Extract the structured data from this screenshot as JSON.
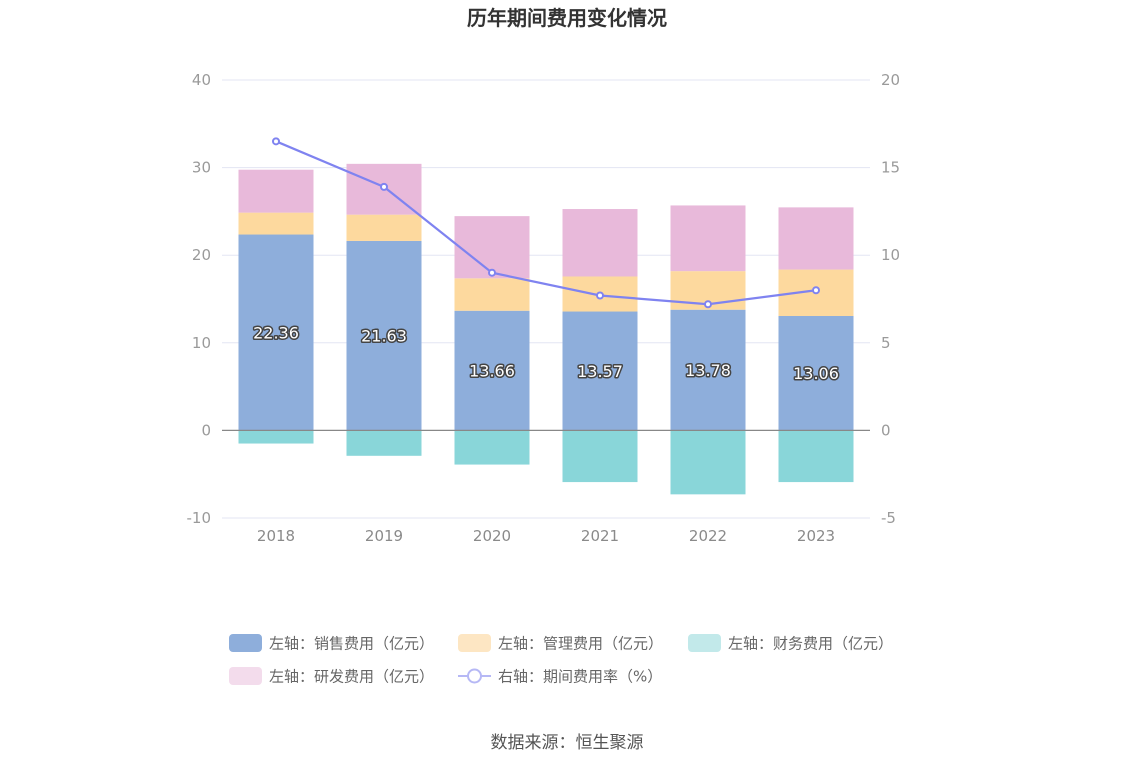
{
  "chart_data": {
    "type": "bar",
    "title": "历年期间费用变化情况",
    "categories": [
      "2018",
      "2019",
      "2020",
      "2021",
      "2022",
      "2023"
    ],
    "left_axis": {
      "ylim": [
        -10,
        40
      ],
      "ticks": [
        "-10",
        "0",
        "10",
        "20",
        "30",
        "40"
      ]
    },
    "right_axis": {
      "ylim": [
        -5,
        20
      ],
      "ticks": [
        "-5",
        "0",
        "5",
        "10",
        "15",
        "20"
      ]
    },
    "series": [
      {
        "name": "左轴：销售费用（亿元）",
        "axis": "left",
        "type": "bar",
        "stack": "total",
        "color": "#8eaedb",
        "values": [
          22.36,
          21.63,
          13.66,
          13.57,
          13.78,
          13.06
        ],
        "labels": [
          "22.36",
          "21.63",
          "13.66",
          "13.57",
          "13.78",
          "13.06"
        ]
      },
      {
        "name": "左轴：管理费用（亿元）",
        "axis": "left",
        "type": "bar",
        "stack": "total",
        "color": "#fdd99e",
        "values": [
          2.5,
          3.0,
          3.7,
          4.0,
          4.4,
          5.3
        ]
      },
      {
        "name": "左轴：财务费用（亿元）",
        "axis": "left",
        "type": "bar",
        "stack": "total",
        "color": "#89d6d9",
        "values": [
          -1.5,
          -2.9,
          -3.9,
          -5.9,
          -7.3,
          -5.9
        ]
      },
      {
        "name": "左轴：研发费用（亿元）",
        "axis": "left",
        "type": "bar",
        "stack": "total",
        "color": "#e8b9da",
        "values": [
          4.9,
          5.8,
          7.1,
          7.7,
          7.5,
          7.1
        ]
      },
      {
        "name": "右轴：期间费用率（%）",
        "axis": "right",
        "type": "line",
        "color": "#7f83f0",
        "values": [
          16.5,
          13.9,
          9.0,
          7.7,
          7.2,
          8.0
        ]
      }
    ],
    "grid": true,
    "legend_position": "bottom"
  },
  "legend": [
    {
      "label": "左轴：销售费用（亿元）",
      "color": "#8eaedb",
      "kind": "bar"
    },
    {
      "label": "左轴：管理费用（亿元）",
      "color": "#fde6c3",
      "kind": "bar"
    },
    {
      "label": "左轴：财务费用（亿元）",
      "color": "#c2e9ea",
      "kind": "bar"
    },
    {
      "label": "左轴：研发费用（亿元）",
      "color": "#f3dcec",
      "kind": "bar"
    },
    {
      "label": "右轴：期间费用率（%）",
      "color": "#b6b8f5",
      "kind": "line"
    }
  ],
  "source": "数据来源：恒生聚源"
}
